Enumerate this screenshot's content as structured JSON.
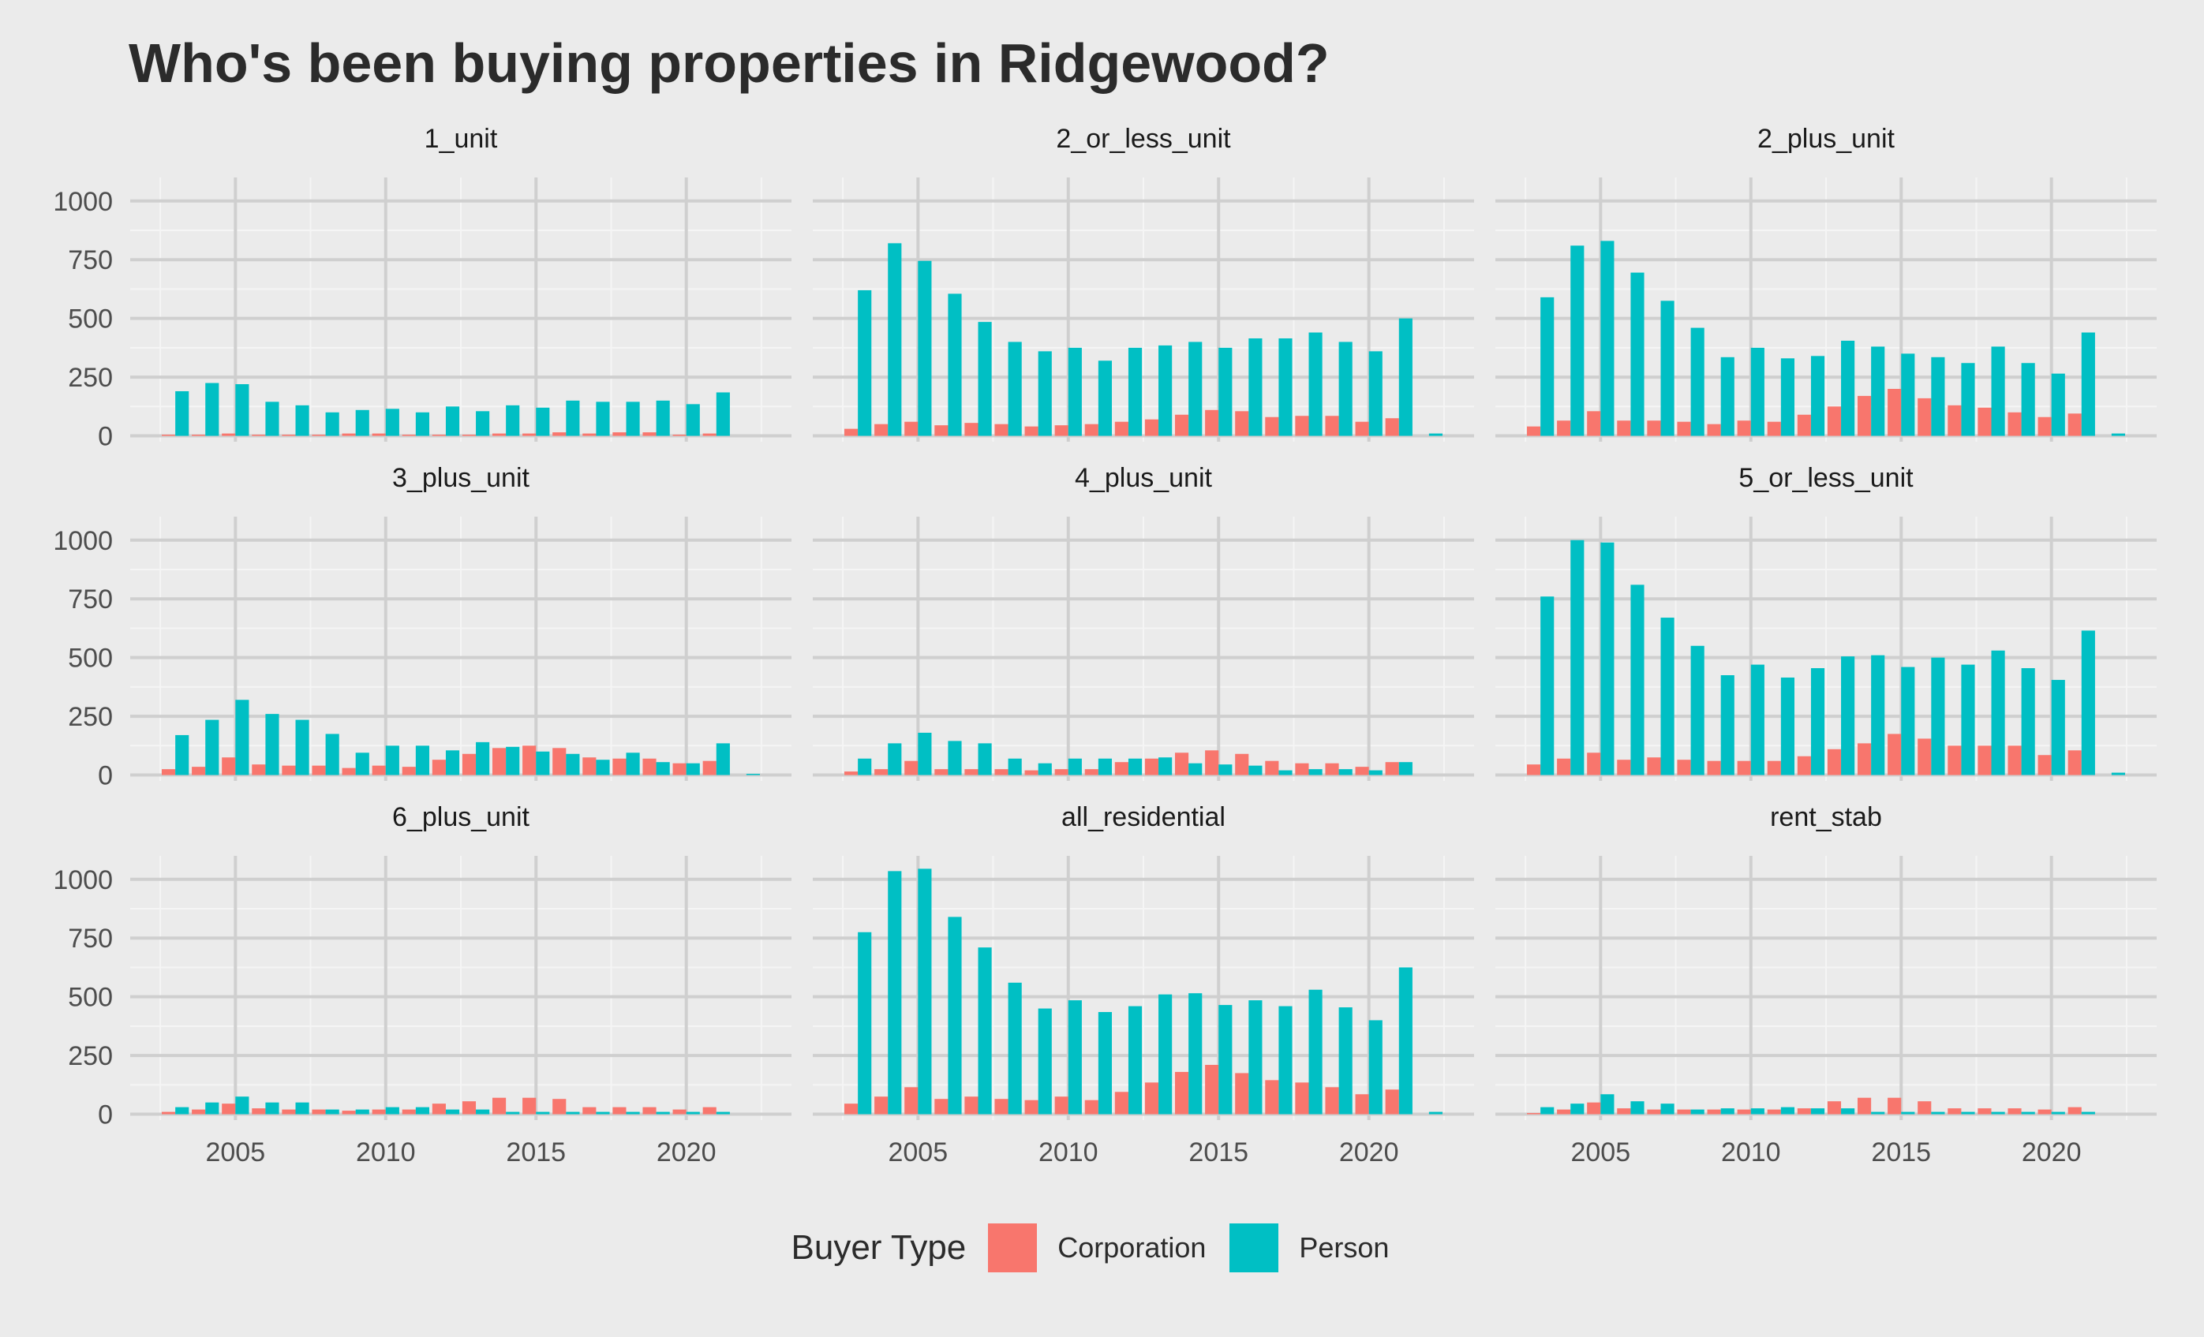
{
  "chart_data": {
    "type": "bar",
    "title": "Who's been buying properties in Ridgewood?",
    "legend": {
      "title": "Buyer Type",
      "position": "bottom"
    },
    "series": [
      {
        "name": "Corporation",
        "color": "#F8766D"
      },
      {
        "name": "Person",
        "color": "#00BFC4"
      }
    ],
    "x": [
      2003,
      2004,
      2005,
      2006,
      2007,
      2008,
      2009,
      2010,
      2011,
      2012,
      2013,
      2014,
      2015,
      2016,
      2017,
      2018,
      2019,
      2020,
      2021,
      2022
    ],
    "xlim": [
      2001.5,
      2023.5
    ],
    "x_ticks": [
      2005,
      2010,
      2015,
      2020
    ],
    "ylim": [
      -25,
      1100
    ],
    "y_ticks": [
      0,
      250,
      500,
      750,
      1000
    ],
    "grid": true,
    "panels": [
      {
        "name": "1_unit",
        "corporation": [
          5,
          5,
          10,
          5,
          5,
          5,
          10,
          10,
          5,
          5,
          5,
          10,
          10,
          15,
          10,
          15,
          15,
          5,
          10,
          0
        ],
        "person": [
          190,
          225,
          220,
          145,
          130,
          100,
          110,
          115,
          100,
          125,
          105,
          130,
          120,
          150,
          145,
          145,
          150,
          135,
          185,
          0
        ]
      },
      {
        "name": "2_or_less_unit",
        "corporation": [
          30,
          50,
          60,
          45,
          55,
          50,
          40,
          45,
          50,
          60,
          70,
          90,
          110,
          105,
          80,
          85,
          85,
          60,
          75,
          0
        ],
        "person": [
          620,
          820,
          745,
          605,
          485,
          400,
          360,
          375,
          320,
          375,
          385,
          400,
          375,
          415,
          415,
          440,
          400,
          360,
          500,
          10
        ]
      },
      {
        "name": "2_plus_unit",
        "corporation": [
          40,
          65,
          105,
          65,
          65,
          60,
          50,
          65,
          60,
          90,
          125,
          170,
          200,
          160,
          130,
          120,
          100,
          80,
          95,
          0
        ],
        "person": [
          590,
          810,
          830,
          695,
          575,
          460,
          335,
          375,
          330,
          340,
          405,
          380,
          350,
          335,
          310,
          380,
          310,
          265,
          440,
          10
        ]
      },
      {
        "name": "3_plus_unit",
        "corporation": [
          25,
          35,
          75,
          45,
          40,
          40,
          30,
          40,
          35,
          65,
          90,
          115,
          125,
          115,
          75,
          70,
          70,
          50,
          60,
          0
        ],
        "person": [
          170,
          235,
          320,
          260,
          235,
          175,
          95,
          125,
          125,
          105,
          140,
          120,
          100,
          90,
          65,
          95,
          55,
          50,
          135,
          5
        ]
      },
      {
        "name": "4_plus_unit",
        "corporation": [
          15,
          25,
          60,
          25,
          25,
          25,
          20,
          25,
          25,
          55,
          70,
          95,
          105,
          90,
          60,
          50,
          50,
          35,
          55,
          0
        ],
        "person": [
          70,
          135,
          180,
          145,
          135,
          70,
          50,
          70,
          70,
          70,
          75,
          50,
          45,
          40,
          20,
          25,
          25,
          20,
          55,
          0
        ]
      },
      {
        "name": "5_or_less_unit",
        "corporation": [
          45,
          70,
          95,
          65,
          75,
          65,
          60,
          60,
          60,
          80,
          110,
          135,
          175,
          155,
          125,
          125,
          125,
          85,
          105,
          0
        ],
        "person": [
          760,
          1000,
          990,
          810,
          670,
          550,
          425,
          470,
          415,
          455,
          505,
          510,
          460,
          500,
          470,
          530,
          455,
          405,
          615,
          10
        ]
      },
      {
        "name": "6_plus_unit",
        "corporation": [
          10,
          20,
          45,
          25,
          20,
          20,
          15,
          20,
          20,
          45,
          55,
          70,
          70,
          65,
          30,
          30,
          30,
          20,
          30,
          0
        ],
        "person": [
          30,
          50,
          75,
          50,
          50,
          20,
          20,
          30,
          30,
          20,
          20,
          10,
          10,
          10,
          10,
          10,
          10,
          10,
          10,
          0
        ]
      },
      {
        "name": "all_residential",
        "corporation": [
          45,
          75,
          115,
          65,
          75,
          65,
          60,
          75,
          60,
          95,
          135,
          180,
          210,
          175,
          145,
          135,
          115,
          85,
          105,
          0
        ],
        "person": [
          775,
          1035,
          1045,
          840,
          710,
          560,
          450,
          485,
          435,
          460,
          510,
          515,
          465,
          485,
          460,
          530,
          455,
          400,
          625,
          10
        ]
      },
      {
        "name": "rent_stab",
        "corporation": [
          5,
          20,
          50,
          25,
          20,
          20,
          20,
          20,
          20,
          25,
          55,
          70,
          70,
          55,
          25,
          25,
          25,
          20,
          30,
          0
        ],
        "person": [
          30,
          45,
          85,
          55,
          45,
          20,
          25,
          25,
          30,
          25,
          25,
          10,
          10,
          10,
          10,
          10,
          10,
          10,
          10,
          0
        ]
      }
    ]
  }
}
